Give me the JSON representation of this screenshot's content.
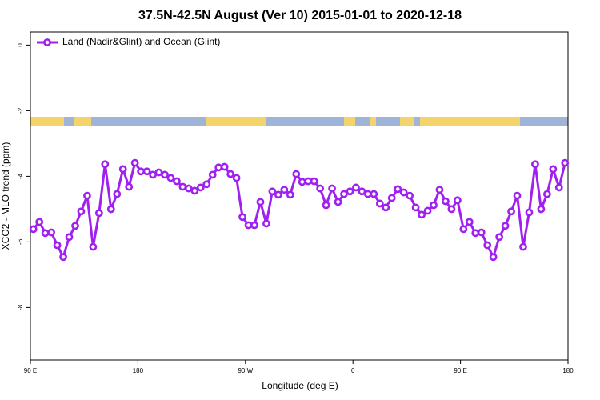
{
  "chart_data": {
    "type": "line",
    "title": "37.5N-42.5N August (Ver 10)   2015-01-01 to 2020-12-18",
    "x_label": "Longitude (deg E)",
    "y_label": "XCO2 - MLO trend (ppm)",
    "xlim": [
      90,
      540
    ],
    "ylim": [
      -9.6,
      0.4
    ],
    "xticks": [
      {
        "value": 90,
        "label": "90 E"
      },
      180,
      {
        "value": 270,
        "label": "90 W"
      },
      {
        "value": 360,
        "label": "0"
      },
      {
        "value": 450,
        "label": "90 E"
      },
      {
        "value": 540,
        "label": "180"
      }
    ],
    "yticks": [
      0,
      -2,
      -4,
      -6,
      -8
    ],
    "legend": "top-left",
    "x": [
      92.5,
      97.5,
      102.5,
      107.5,
      112.5,
      117.5,
      122.5,
      127.5,
      132.5,
      137.5,
      142.5,
      147.5,
      152.5,
      157.5,
      162.5,
      167.5,
      172.5,
      177.5,
      182.5,
      187.5,
      192.5,
      197.5,
      202.5,
      207.5,
      212.5,
      217.5,
      222.5,
      227.5,
      232.5,
      237.5,
      242.5,
      247.5,
      252.5,
      257.5,
      262.5,
      267.5,
      272.5,
      277.5,
      282.5,
      287.5,
      292.5,
      297.5,
      302.5,
      307.5,
      312.5,
      317.5,
      322.5,
      327.5,
      332.5,
      337.5,
      342.5,
      347.5,
      352.5,
      357.5,
      362.5,
      367.5,
      372.5,
      377.5,
      382.5,
      387.5,
      392.5,
      397.5,
      402.5,
      407.5,
      412.5,
      417.5,
      422.5,
      427.5,
      432.5,
      437.5,
      442.5,
      447.5,
      452.5,
      457.5,
      462.5,
      467.5,
      472.5,
      477.5,
      482.5,
      487.5,
      492.5,
      497.5,
      502.5,
      507.5,
      512.5,
      517.5,
      522.5,
      527.5,
      532.5,
      537.5
    ],
    "series": [
      {
        "name": "Land (Nadir&Glint) and Ocean (Glint)",
        "color": "#a020f0",
        "values": [
          -5.61,
          -5.39,
          -5.73,
          -5.71,
          -6.1,
          -6.46,
          -5.85,
          -5.51,
          -5.07,
          -4.59,
          -6.15,
          -5.12,
          -3.63,
          -5.0,
          -4.54,
          -3.78,
          -4.32,
          -3.59,
          -3.85,
          -3.85,
          -3.95,
          -3.88,
          -3.95,
          -4.05,
          -4.15,
          -4.32,
          -4.37,
          -4.44,
          -4.34,
          -4.24,
          -3.95,
          -3.73,
          -3.71,
          -3.93,
          -4.05,
          -5.24,
          -5.49,
          -5.49,
          -4.78,
          -5.44,
          -4.46,
          -4.56,
          -4.41,
          -4.56,
          -3.93,
          -4.17,
          -4.15,
          -4.15,
          -4.37,
          -4.88,
          -4.37,
          -4.78,
          -4.54,
          -4.46,
          -4.34,
          -4.46,
          -4.54,
          -4.54,
          -4.83,
          -4.95,
          -4.66,
          -4.39,
          -4.49,
          -4.59,
          -4.95,
          -5.17,
          -5.05,
          -4.88,
          -4.41,
          -4.76,
          -5.0,
          -4.73,
          -5.61,
          -5.39,
          -5.73,
          -5.71,
          -6.1,
          -6.46,
          -5.85,
          -5.51,
          -5.07,
          -4.59,
          -6.15,
          -5.1,
          -3.63,
          -5.0,
          -4.54,
          -3.78,
          -4.34,
          -3.59
        ]
      }
    ]
  }
}
